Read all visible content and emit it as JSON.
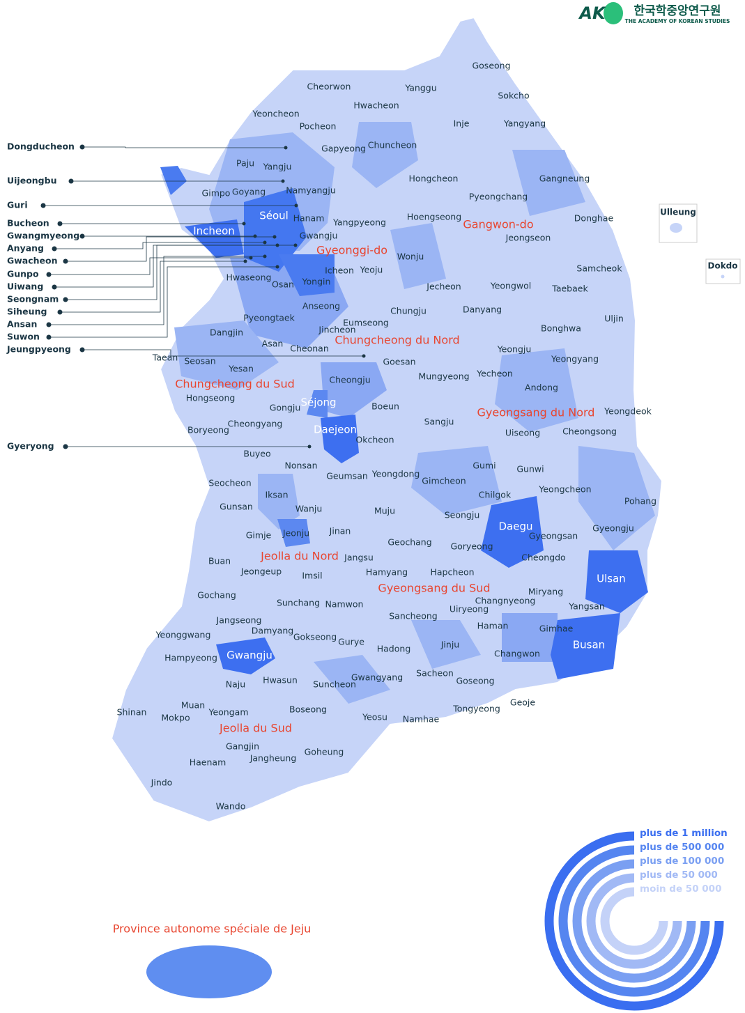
{
  "logo": {
    "mark": "AK",
    "title": "한국학중앙연구원",
    "subtitle": "THE ACADEMY OF KOREAN STUDIES"
  },
  "provinces": [
    "Gangwon-do",
    "Gyeonggi-do",
    "Chungcheong du Nord",
    "Chungcheong du Sud",
    "Gyeongsang du Nord",
    "Jeolla du Nord",
    "Gyeongsang du Sud",
    "Jeolla du Sud",
    "Province autonome spéciale de Jeju"
  ],
  "major_cities": [
    "Séoul",
    "Incheon",
    "Séjong",
    "Daejeon",
    "Daegu",
    "Ulsan",
    "Busan",
    "Gwangju"
  ],
  "cities": [
    "Goseong",
    "Cheorwon",
    "Yanggu",
    "Sokcho",
    "Yeoncheon",
    "Hwacheon",
    "Inje",
    "Yangyang",
    "Pocheon",
    "Gapyeong",
    "Chuncheon",
    "Paju",
    "Yangju",
    "Gangneung",
    "Hongcheon",
    "Gimpo",
    "Goyang",
    "Namyangju",
    "Pyeongchang",
    "Hanam",
    "Yangpyeong",
    "Hoengseong",
    "Donghae",
    "Gwangju",
    "Jeongseon",
    "Wonju",
    "Icheon",
    "Yeoju",
    "Samcheok",
    "Hwaseong",
    "Osan",
    "Yongin",
    "Jecheon",
    "Yeongwol",
    "Taebaek",
    "Anseong",
    "Chungju",
    "Danyang",
    "Uljin",
    "Pyeongtaek",
    "Eumseong",
    "Jincheon",
    "Bonghwa",
    "Dangjin",
    "Asan",
    "Cheonan",
    "Yeongju",
    "Taean",
    "Seosan",
    "Yesan",
    "Goesan",
    "Yeongyang",
    "Cheongju",
    "Mungyeong",
    "Yecheon",
    "Andong",
    "Hongseong",
    "Gongju",
    "Boeun",
    "Yeongdeok",
    "Cheongyang",
    "Sangju",
    "Uiseong",
    "Cheongsong",
    "Boryeong",
    "Okcheon",
    "Buyeo",
    "Nonsan",
    "Gumi",
    "Gunwi",
    "Geumsan",
    "Yeongdong",
    "Gimcheon",
    "Seocheon",
    "Yeongcheon",
    "Iksan",
    "Chilgok",
    "Pohang",
    "Gunsan",
    "Wanju",
    "Muju",
    "Seongju",
    "Gimje",
    "Jeonju",
    "Jinan",
    "Gyeongsan",
    "Gyeongju",
    "Geochang",
    "Goryeong",
    "Buan",
    "Jangsu",
    "Cheongdo",
    "Jeongeup",
    "Imsil",
    "Hamyang",
    "Hapcheon",
    "Gochang",
    "Miryang",
    "Sunchang",
    "Namwon",
    "Changnyeong",
    "Uiryeong",
    "Yangsan",
    "Jangseong",
    "Sancheong",
    "Haman",
    "Gimhae",
    "Yeonggwang",
    "Damyang",
    "Gokseong",
    "Gurye",
    "Hadong",
    "Jinju",
    "Changwon",
    "Hampyeong",
    "Hwasun",
    "Suncheon",
    "Gwangyang",
    "Sacheon",
    "Goseong",
    "Geoje",
    "Naju",
    "Muan",
    "Shinan",
    "Yeongam",
    "Boseong",
    "Tongyeong",
    "Yeosu",
    "Namhae",
    "Mokpo",
    "Gangjin",
    "Jangheung",
    "Goheung",
    "Haenam",
    "Jindo",
    "Wando"
  ],
  "callouts": [
    "Dongducheon",
    "Uijeongbu",
    "Guri",
    "Bucheon",
    "Gwangmyeong",
    "Anyang",
    "Gwacheon",
    "Gunpo",
    "Uiwang",
    "Seongnam",
    "Siheung",
    "Ansan",
    "Suwon",
    "Jeungpyeong",
    "Gyeryong"
  ],
  "islands": [
    "Ulleung",
    "Dokdo"
  ],
  "legend": [
    "plus de 1 million",
    "plus de 500 000",
    "plus de 100 000",
    "plus de 50 000",
    "moin de 50 000"
  ]
}
